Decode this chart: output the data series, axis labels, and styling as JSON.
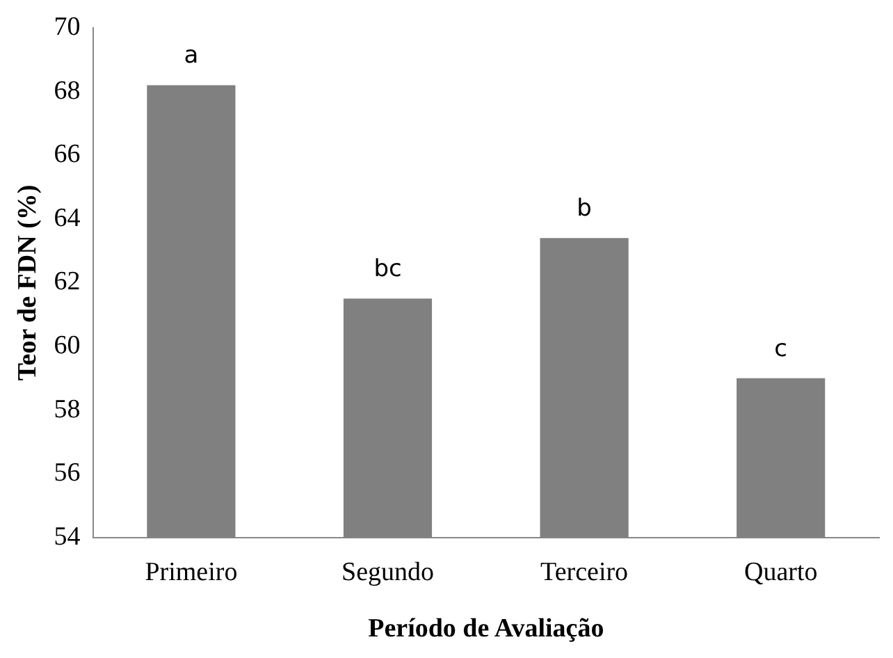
{
  "chart_data": {
    "type": "bar",
    "xlabel": "Período de Avaliação",
    "ylabel": "Teor de FDN (%)",
    "categories": [
      "Primeiro",
      "Segundo",
      "Terceiro",
      "Quarto"
    ],
    "values": [
      68.2,
      61.5,
      63.4,
      59.0
    ],
    "color": "#808080",
    "ylim": [
      54,
      70
    ],
    "yticks": [
      54,
      56,
      58,
      60,
      62,
      64,
      66,
      68,
      70
    ],
    "grid": false,
    "legend": false,
    "annotations": [
      {
        "text": "a",
        "x": "Primeiro",
        "y": 68.2
      },
      {
        "text": "bc",
        "x": "Segundo",
        "y": 61.5
      },
      {
        "text": "b",
        "x": "Terceiro",
        "y": 63.4
      },
      {
        "text": "c",
        "x": "Quarto",
        "y": 59.0
      }
    ]
  }
}
